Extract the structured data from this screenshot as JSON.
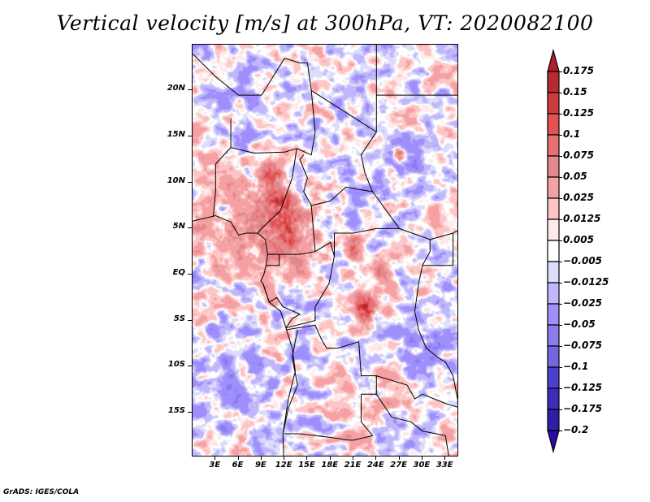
{
  "chart_data": {
    "type": "heatmap",
    "title": "Vertical velocity [m/s] at 300hPa, VT: 2020082100",
    "xlabel": "",
    "ylabel": "",
    "x_range_deg": [
      0,
      35
    ],
    "y_range_deg": [
      -20,
      25
    ],
    "x_ticks": [
      "3E",
      "6E",
      "9E",
      "12E",
      "15E",
      "18E",
      "21E",
      "24E",
      "27E",
      "30E",
      "33E"
    ],
    "x_tick_values": [
      3,
      6,
      9,
      12,
      15,
      18,
      21,
      24,
      27,
      30,
      33
    ],
    "y_ticks": [
      "20N",
      "15N",
      "10N",
      "5N",
      "EQ",
      "5S",
      "10S",
      "15S"
    ],
    "y_tick_values": [
      20,
      15,
      10,
      5,
      0,
      -5,
      -10,
      -15
    ],
    "colorbar": {
      "placement": "right",
      "extend": "both",
      "labels": [
        "0.175",
        "0.15",
        "0.125",
        "0.1",
        "0.075",
        "0.05",
        "0.025",
        "0.0125",
        "0.005",
        "−0.005",
        "−0.0125",
        "−0.025",
        "−0.05",
        "−0.075",
        "−0.1",
        "−0.125",
        "−0.175",
        "−0.2"
      ],
      "levels": [
        0.175,
        0.15,
        0.125,
        0.1,
        0.075,
        0.05,
        0.025,
        0.0125,
        0.005,
        -0.005,
        -0.0125,
        -0.025,
        -0.05,
        -0.075,
        -0.1,
        -0.125,
        -0.175,
        -0.2
      ],
      "colors": [
        "#b0222a",
        "#b82a2e",
        "#cc3b40",
        "#e35355",
        "#e87072",
        "#e3898e",
        "#f5a0a2",
        "#fdc5c6",
        "#feeaea",
        "#ffffff",
        "#dcdcfc",
        "#c0b6fc",
        "#9f8ffc",
        "#8a7bee",
        "#7565e0",
        "#4d3fd0",
        "#3c2cbc",
        "#2d1fa8",
        "#2a0aa0"
      ]
    },
    "features": [
      "strong ascent (red) over Nigeria/Cameroon/Gulf of Guinea near 5N-8N, 9E-15E",
      "convective cluster near 4S, 22E-23E",
      "small cluster near 13N, 27E",
      "mixed weak ascent/descent elsewhere"
    ]
  },
  "footer": "GrADS: IGES/COLA"
}
